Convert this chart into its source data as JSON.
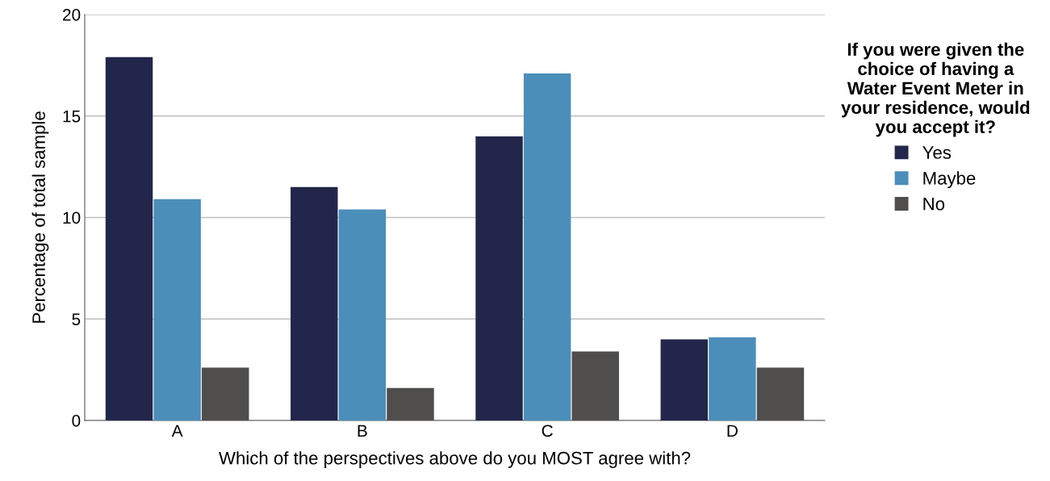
{
  "chart_data": {
    "type": "bar",
    "xlabel": "Which of the perspectives above do you MOST agree with?",
    "ylabel": "Percentage of total sample",
    "legend_title": "If you were given the choice of having a Water Event Meter in your residence, would you accept it?",
    "categories": [
      "A",
      "B",
      "C",
      "D"
    ],
    "series": [
      {
        "name": "Yes",
        "color": "#23264b",
        "values": [
          17.9,
          11.5,
          14.0,
          4.0
        ]
      },
      {
        "name": "Maybe",
        "color": "#4a8eb9",
        "values": [
          10.9,
          10.4,
          17.1,
          4.1
        ]
      },
      {
        "name": "No",
        "color": "#504d4d",
        "values": [
          2.6,
          1.6,
          3.4,
          2.6
        ]
      }
    ],
    "ylim": [
      0,
      20
    ],
    "yticks": [
      0,
      5,
      10,
      15,
      20
    ],
    "grid": "y",
    "legend": "right"
  }
}
